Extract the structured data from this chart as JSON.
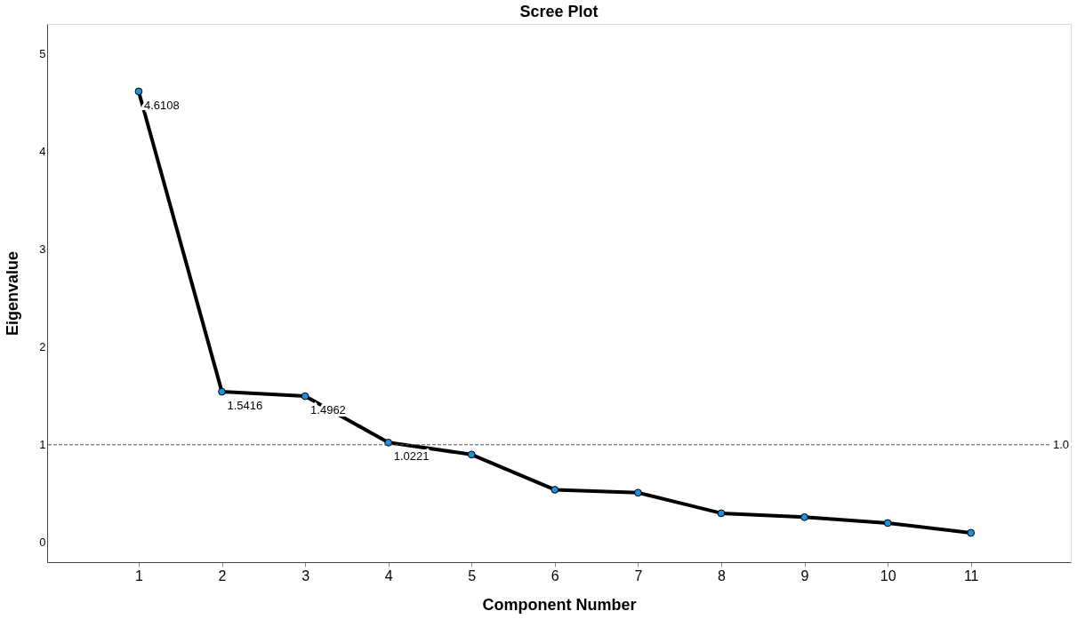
{
  "chart_data": {
    "type": "line",
    "title": "Scree Plot",
    "xlabel": "Component Number",
    "ylabel": "Eigenvalue",
    "x": [
      1,
      2,
      3,
      4,
      5,
      6,
      7,
      8,
      9,
      10,
      11
    ],
    "series": [
      {
        "color": "#000000",
        "values": [
          4.6108,
          1.5416,
          1.4962,
          1.0221,
          0.9,
          0.54,
          0.51,
          0.3,
          0.26,
          0.2,
          0.1
        ],
        "value_labels": [
          "4.6108",
          "1.5416",
          "1.4962",
          "1.0221",
          null,
          null,
          null,
          null,
          null,
          null,
          null
        ]
      }
    ],
    "marker": "circle",
    "line_style": "solid",
    "grid": false,
    "xlim": [
      -0.1,
      12.2
    ],
    "xticks": [
      1,
      2,
      3,
      4,
      5,
      6,
      7,
      8,
      9,
      10,
      11
    ],
    "ylim": [
      -0.2,
      5.3
    ],
    "yticks": [
      0,
      1,
      2,
      3,
      4,
      5
    ],
    "ref_lines": [
      {
        "axis": "y",
        "value": 1,
        "label": "1.0",
        "line_style": "dashed"
      }
    ]
  }
}
